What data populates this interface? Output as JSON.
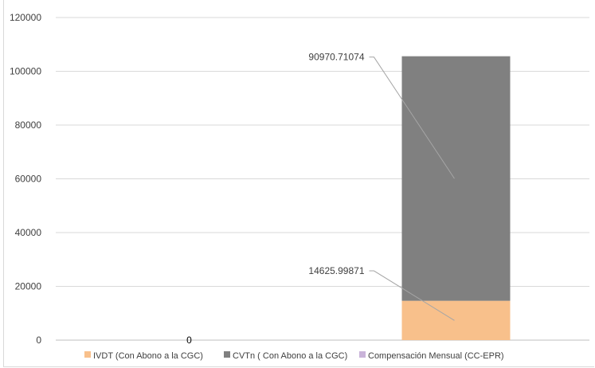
{
  "chart_data": {
    "type": "bar",
    "stacked": true,
    "title": "",
    "xlabel": "",
    "ylabel": "",
    "categories": [
      "",
      ""
    ],
    "ylim": [
      0,
      120000
    ],
    "yticks": [
      "0",
      "20000",
      "40000",
      "60000",
      "80000",
      "100000",
      "120000"
    ],
    "grid": true,
    "legend_position": "bottom",
    "series": [
      {
        "name": "IVDT  (Con Abono a la CGC)",
        "values": [
          0,
          14625.99871
        ],
        "color": "#f8c08b"
      },
      {
        "name": "CVTn ( Con Abono a la CGC)",
        "values": [
          0,
          90970.71074
        ],
        "color": "#808080"
      },
      {
        "name": "Compensación  Mensual (CC-EPR)",
        "values": [
          0,
          0
        ],
        "color": "#c9b3d9"
      }
    ],
    "data_labels": [
      {
        "series": 0,
        "category": 0,
        "text": "0"
      },
      {
        "series": 0,
        "category": 1,
        "text": "14625.99871"
      },
      {
        "series": 1,
        "category": 1,
        "text": "90970.71074"
      }
    ]
  }
}
